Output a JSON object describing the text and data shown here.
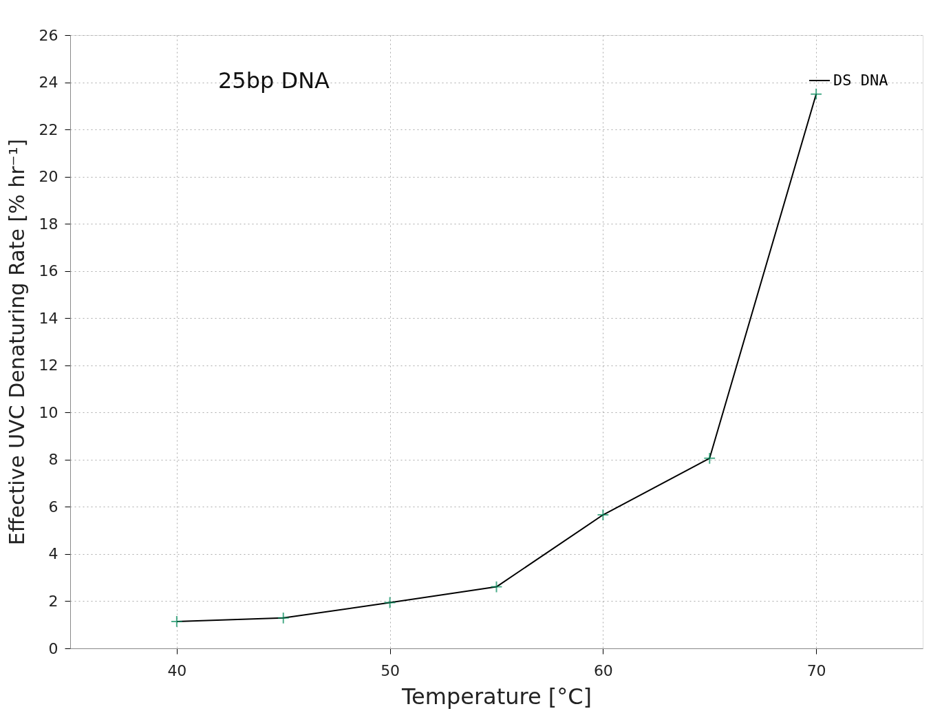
{
  "chart_data": {
    "type": "line",
    "annotations": [
      "25bp DNA"
    ],
    "xlabel": "Temperature [°C]",
    "ylabel": "Effective UVC Denaturing Rate [% hr⁻¹]",
    "x": [
      40,
      45,
      50,
      55,
      60,
      65,
      70
    ],
    "series": [
      {
        "name": "DS DNA",
        "color": "#000000",
        "marker": "none",
        "values": [
          1.14,
          1.29,
          1.94,
          2.61,
          5.66,
          8.06,
          23.5
        ]
      },
      {
        "type": "scatter",
        "color": "#008b5a",
        "marker": "cross",
        "values": [
          1.14,
          1.29,
          1.94,
          2.61,
          5.66,
          8.06,
          23.5
        ]
      }
    ],
    "xlim": [
      35,
      75
    ],
    "xticks": [
      40,
      50,
      60,
      70
    ],
    "ylim": [
      0,
      26
    ],
    "yticks": [
      0,
      2,
      4,
      6,
      8,
      10,
      12,
      14,
      16,
      18,
      20,
      22,
      24,
      26
    ],
    "grid": true,
    "legend": "top right"
  }
}
